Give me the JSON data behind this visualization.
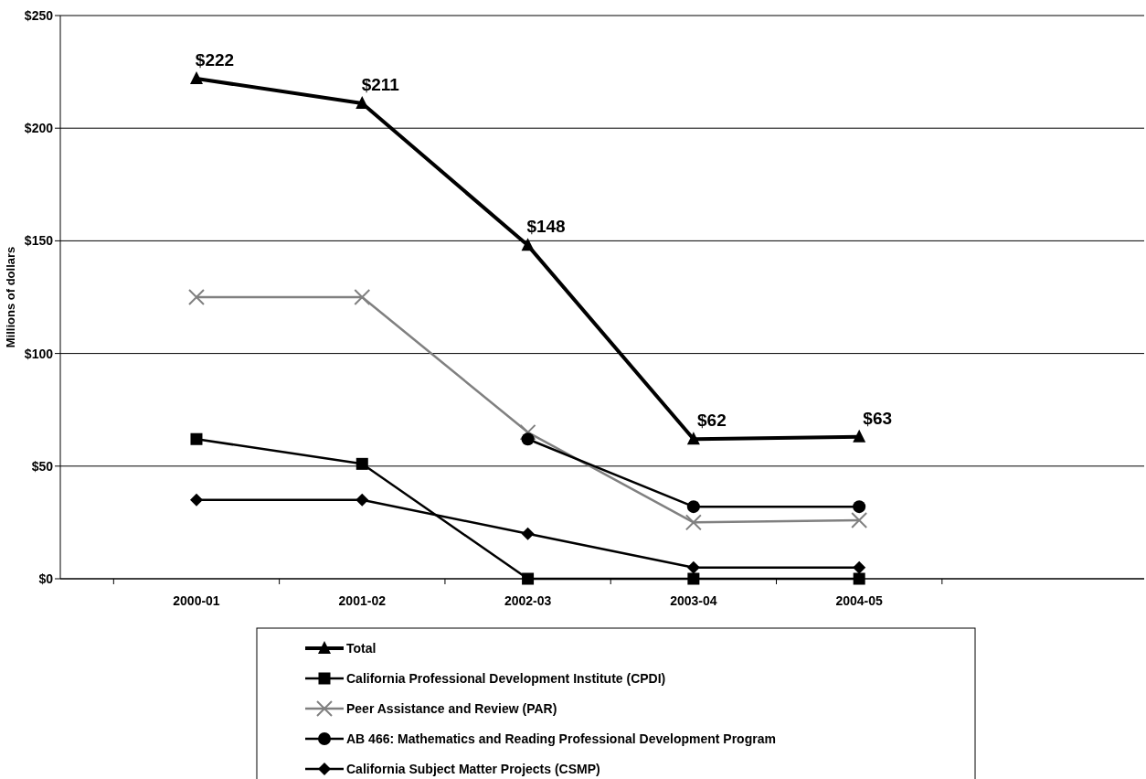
{
  "chart_data": {
    "type": "line",
    "ylabel": "Millions of dollars",
    "categories": [
      "2000-01",
      "2001-02",
      "2002-03",
      "2003-04",
      "2004-05"
    ],
    "series": [
      {
        "name": "Total",
        "color": "#000000",
        "marker": "triangle",
        "values": [
          222,
          211,
          148,
          62,
          63
        ],
        "value_labels": [
          "$222",
          "$211",
          "$148",
          "$62",
          "$63"
        ]
      },
      {
        "name": "California Professional Development Institute (CPDI)",
        "color": "#000000",
        "marker": "square",
        "values": [
          62,
          51,
          0,
          0,
          0
        ]
      },
      {
        "name": "Peer Assistance and Review (PAR)",
        "color": "#808080",
        "marker": "cross",
        "values": [
          125,
          125,
          65,
          25,
          26
        ]
      },
      {
        "name": "AB 466: Mathematics and Reading Professional Development Program",
        "color": "#000000",
        "marker": "circle",
        "values": [
          null,
          null,
          62,
          32,
          32
        ]
      },
      {
        "name": "California Subject Matter Projects (CSMP)",
        "color": "#000000",
        "marker": "diamond",
        "values": [
          35,
          35,
          20,
          5,
          5
        ]
      }
    ],
    "ylim": [
      0,
      250
    ],
    "yticks": [
      {
        "value": 0,
        "label": "$0"
      },
      {
        "value": 50,
        "label": "$50"
      },
      {
        "value": 100,
        "label": "$100"
      },
      {
        "value": 150,
        "label": "$150"
      },
      {
        "value": 200,
        "label": "$200"
      },
      {
        "value": 250,
        "label": "$250"
      }
    ],
    "grid": "y",
    "legend": "bottom"
  }
}
